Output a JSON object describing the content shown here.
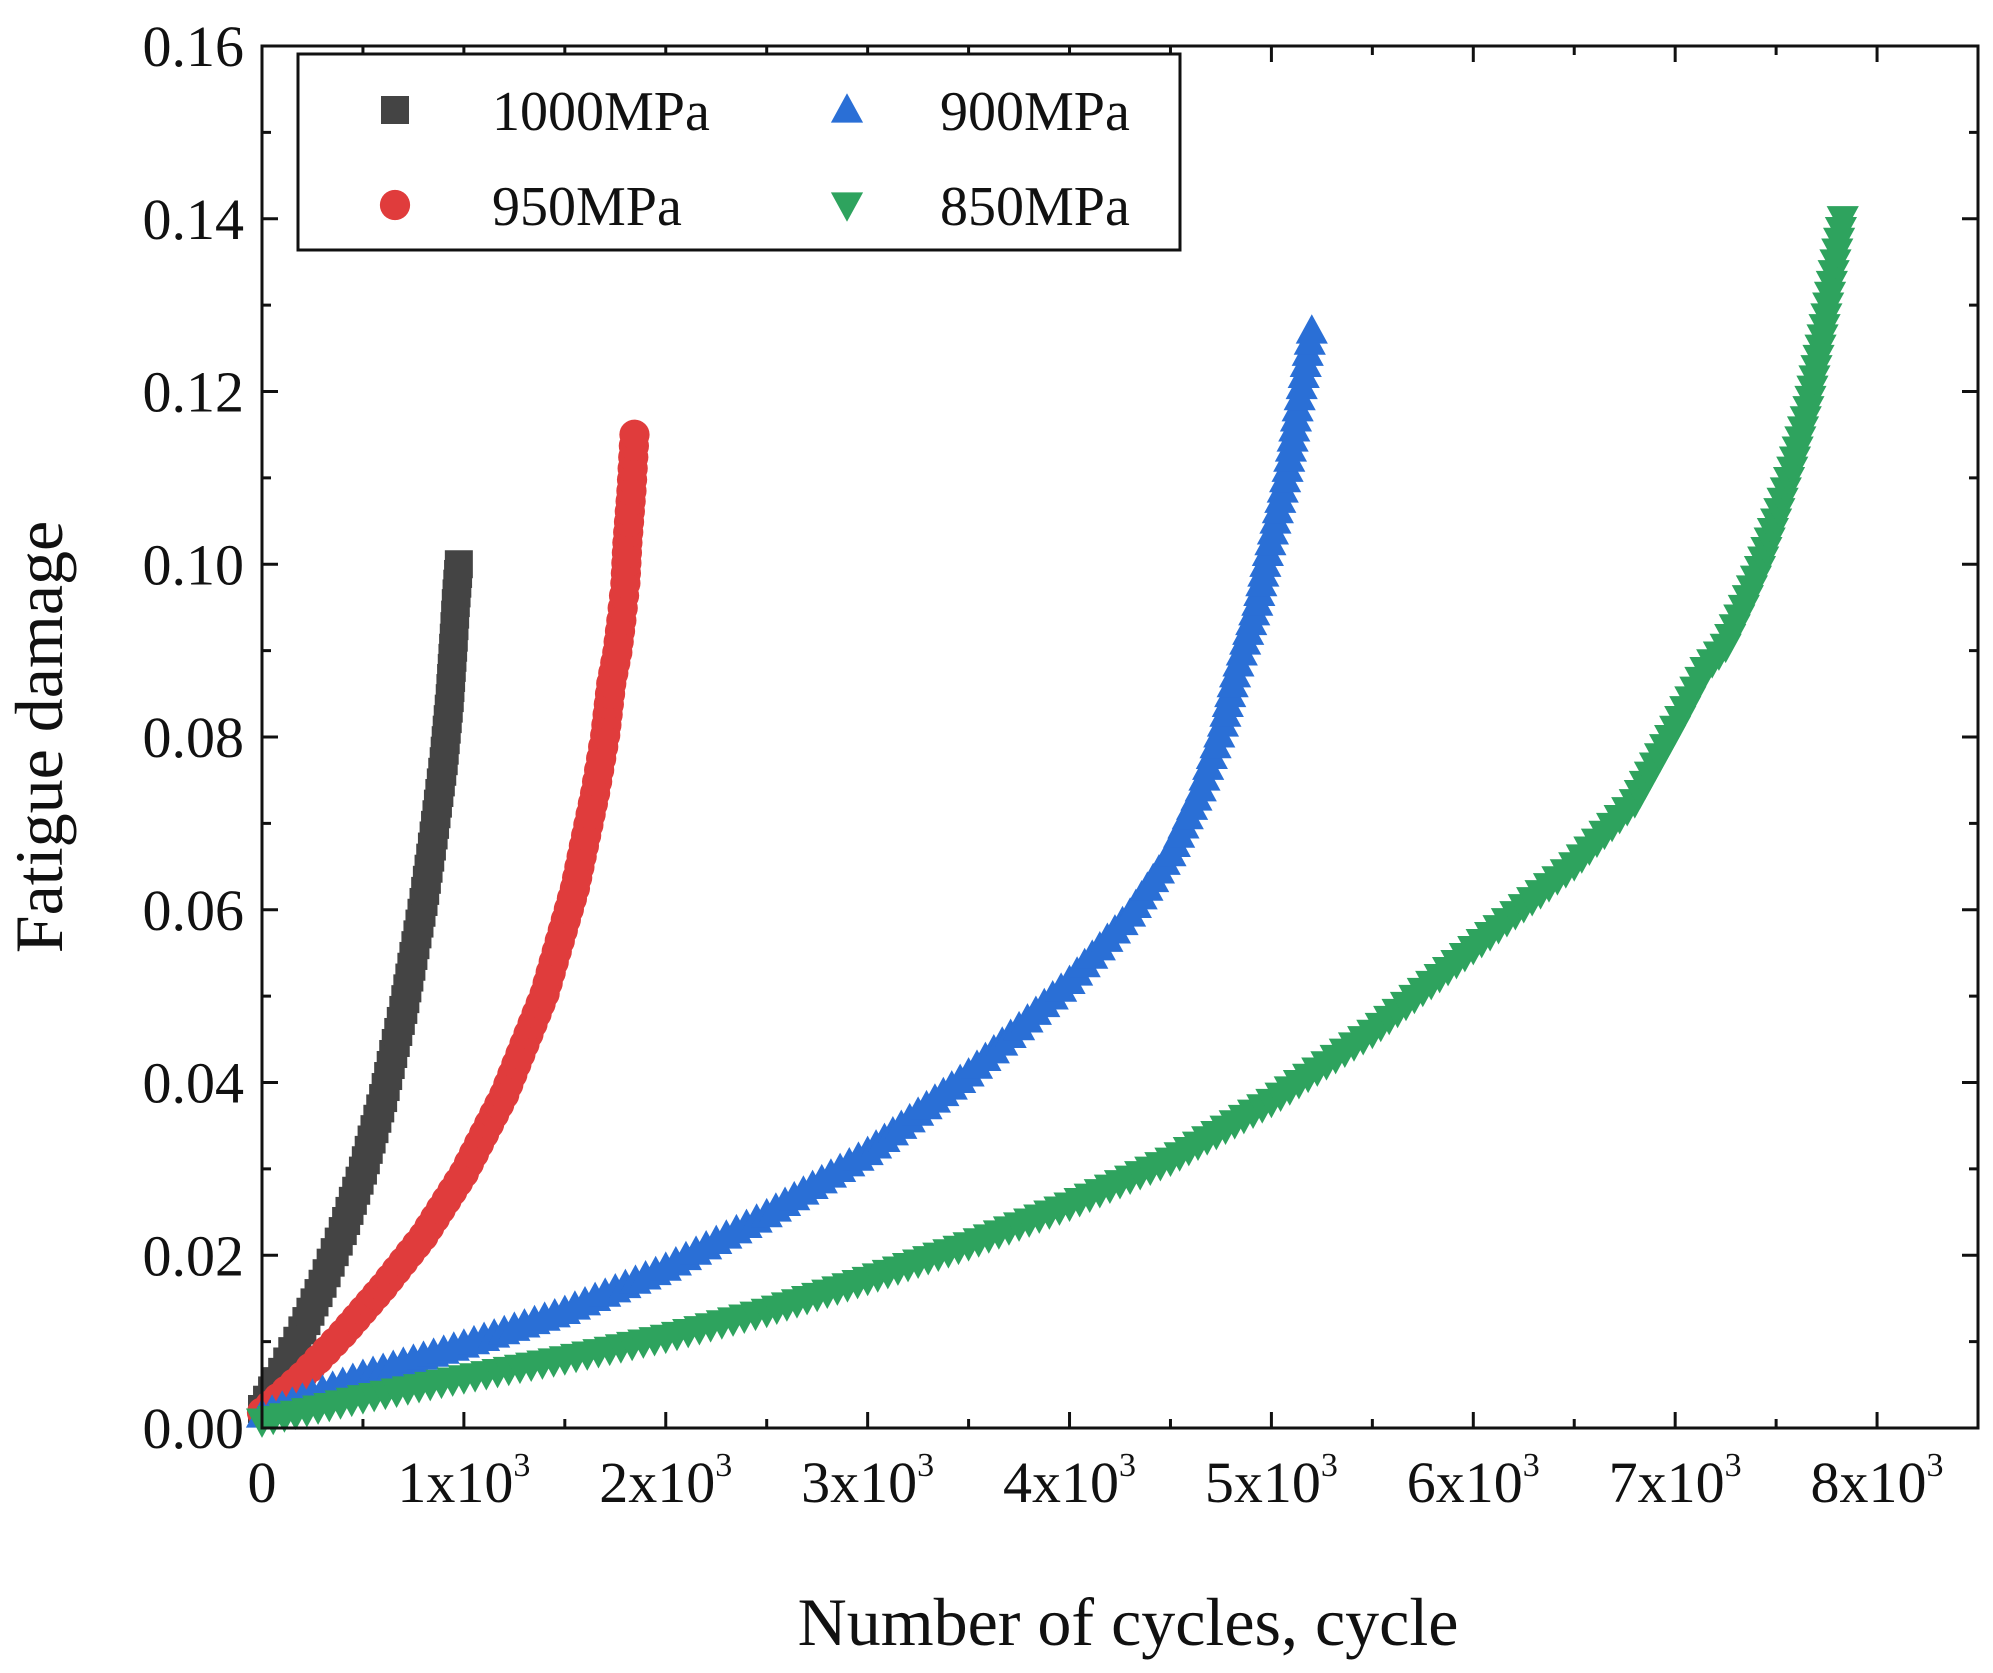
{
  "chart_data": {
    "type": "scatter",
    "title": "",
    "xlabel": "Number of cycles, cycle",
    "ylabel": "Fatigue damage",
    "xlim": [
      0,
      8500
    ],
    "ylim": [
      0,
      0.16
    ],
    "grid": false,
    "legend_position": "top-left",
    "x_ticks": [
      {
        "value": 0,
        "base": "0",
        "exp": ""
      },
      {
        "value": 1000,
        "base": "1x10",
        "exp": "3"
      },
      {
        "value": 2000,
        "base": "2x10",
        "exp": "3"
      },
      {
        "value": 3000,
        "base": "3x10",
        "exp": "3"
      },
      {
        "value": 4000,
        "base": "4x10",
        "exp": "3"
      },
      {
        "value": 5000,
        "base": "5x10",
        "exp": "3"
      },
      {
        "value": 6000,
        "base": "6x10",
        "exp": "3"
      },
      {
        "value": 7000,
        "base": "7x10",
        "exp": "3"
      },
      {
        "value": 8000,
        "base": "8x10",
        "exp": "3"
      }
    ],
    "y_ticks": [
      {
        "value": 0.0,
        "label": "0.00"
      },
      {
        "value": 0.02,
        "label": "0.02"
      },
      {
        "value": 0.04,
        "label": "0.04"
      },
      {
        "value": 0.06,
        "label": "0.06"
      },
      {
        "value": 0.08,
        "label": "0.08"
      },
      {
        "value": 0.1,
        "label": "0.10"
      },
      {
        "value": 0.12,
        "label": "0.12"
      },
      {
        "value": 0.14,
        "label": "0.14"
      },
      {
        "value": 0.16,
        "label": "0.16"
      }
    ],
    "series": [
      {
        "name": "1000MPa",
        "marker": "square",
        "color": "#444444",
        "points": [
          [
            0,
            0.0022
          ],
          [
            100,
            0.0065
          ],
          [
            200,
            0.0113
          ],
          [
            300,
            0.0167
          ],
          [
            400,
            0.0228
          ],
          [
            500,
            0.0298
          ],
          [
            600,
            0.0382
          ],
          [
            700,
            0.0484
          ],
          [
            800,
            0.0609
          ],
          [
            850,
            0.0686
          ],
          [
            900,
            0.0772
          ],
          [
            930,
            0.0845
          ],
          [
            950,
            0.0915
          ],
          [
            960,
            0.0955
          ],
          [
            975,
            0.1
          ]
        ]
      },
      {
        "name": "950MPa",
        "marker": "circle",
        "color": "#e03c3c",
        "points": [
          [
            0,
            0.0018
          ],
          [
            200,
            0.006
          ],
          [
            400,
            0.0109
          ],
          [
            600,
            0.0163
          ],
          [
            800,
            0.0222
          ],
          [
            1000,
            0.0295
          ],
          [
            1200,
            0.0386
          ],
          [
            1400,
            0.0503
          ],
          [
            1550,
            0.0625
          ],
          [
            1650,
            0.0735
          ],
          [
            1700,
            0.0802
          ],
          [
            1730,
            0.0862
          ],
          [
            1760,
            0.0898
          ],
          [
            1780,
            0.0935
          ],
          [
            1800,
            0.0978
          ],
          [
            1810,
            0.1025
          ],
          [
            1830,
            0.1085
          ],
          [
            1845,
            0.115
          ]
        ]
      },
      {
        "name": "900MPa",
        "marker": "triangle-up",
        "color": "#2a6fd6",
        "points": [
          [
            0,
            0.0015
          ],
          [
            500,
            0.0061
          ],
          [
            1000,
            0.0096
          ],
          [
            1500,
            0.0135
          ],
          [
            2000,
            0.0185
          ],
          [
            2500,
            0.0247
          ],
          [
            3000,
            0.0319
          ],
          [
            3500,
            0.041
          ],
          [
            4000,
            0.0517
          ],
          [
            4300,
            0.0595
          ],
          [
            4500,
            0.0665
          ],
          [
            4650,
            0.074
          ],
          [
            4760,
            0.0815
          ],
          [
            4820,
            0.0872
          ],
          [
            4870,
            0.091
          ],
          [
            4930,
            0.0955
          ],
          [
            4970,
            0.1
          ],
          [
            5020,
            0.105
          ],
          [
            5080,
            0.111
          ],
          [
            5130,
            0.118
          ],
          [
            5200,
            0.127
          ]
        ]
      },
      {
        "name": "850MPa",
        "marker": "triangle-down",
        "color": "#2ea35e",
        "points": [
          [
            0,
            0.0008
          ],
          [
            500,
            0.0035
          ],
          [
            1000,
            0.0058
          ],
          [
            1500,
            0.008
          ],
          [
            2000,
            0.0105
          ],
          [
            2500,
            0.0135
          ],
          [
            3000,
            0.0172
          ],
          [
            3500,
            0.0212
          ],
          [
            4000,
            0.0258
          ],
          [
            4500,
            0.031
          ],
          [
            5000,
            0.0378
          ],
          [
            5500,
            0.0458
          ],
          [
            6000,
            0.0555
          ],
          [
            6500,
            0.0652
          ],
          [
            6800,
            0.0725
          ],
          [
            7000,
            0.081
          ],
          [
            7150,
            0.0878
          ],
          [
            7250,
            0.0905
          ],
          [
            7340,
            0.095
          ],
          [
            7420,
            0.0995
          ],
          [
            7500,
            0.105
          ],
          [
            7580,
            0.111
          ],
          [
            7660,
            0.118
          ],
          [
            7740,
            0.1275
          ],
          [
            7830,
            0.14
          ]
        ]
      }
    ]
  }
}
